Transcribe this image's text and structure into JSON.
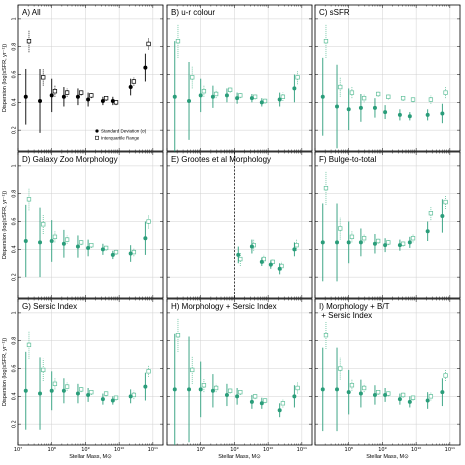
{
  "figure": {
    "xlabel": "Stellar Mass, M⊙",
    "ylabel": "Dispersion (log(sSFR, yr⁻¹))",
    "x_tick_labels": [
      "10⁷",
      "10⁸",
      "10⁹",
      "10¹⁰",
      "10¹¹"
    ],
    "y_tick_labels": [
      "0.2",
      "0.4",
      "0.6",
      "0.8",
      "1"
    ],
    "legend": {
      "filled": "Standard Deviation (σ)",
      "open": "Interquartile Range"
    },
    "colors": {
      "all": "#000000",
      "teal": "#2a9d7a",
      "open_teal": "#5fbf9a",
      "grid": "#d0d0d0"
    }
  },
  "chart_data": [
    {
      "type": "scatter",
      "title": "A) All",
      "color": "#000000",
      "xscale": "log",
      "xlim": [
        10000000,
        200000000000
      ],
      "ylim": [
        0.05,
        1.1
      ],
      "std": {
        "x": [
          17000000,
          45000000,
          100000000,
          230000000,
          600000000,
          1200000000,
          3300000000,
          6500000000,
          22000000000,
          60000000000
        ],
        "y": [
          0.44,
          0.41,
          0.45,
          0.44,
          0.44,
          0.42,
          0.41,
          0.41,
          0.51,
          0.65
        ],
        "err": [
          0.2,
          0.23,
          0.12,
          0.07,
          0.06,
          0.05,
          0.03,
          0.03,
          0.06,
          0.1
        ]
      },
      "iqr": {
        "x": [
          17000000,
          45000000,
          100000000,
          230000000,
          600000000,
          1200000000,
          3300000000,
          6500000000,
          22000000000,
          60000000000
        ],
        "y": [
          0.84,
          0.58,
          0.48,
          0.47,
          0.47,
          0.45,
          0.43,
          0.4,
          0.55,
          0.82
        ],
        "err": [
          0.08,
          0.06,
          0.04,
          0.03,
          0.02,
          0.02,
          0.02,
          0.02,
          0.03,
          0.04
        ]
      },
      "show_legend": true
    },
    {
      "type": "scatter",
      "title": "B) u-r colour",
      "color": "#2a9d7a",
      "xscale": "log",
      "xlim": [
        10000000,
        200000000000
      ],
      "ylim": [
        0.05,
        1.1
      ],
      "std": {
        "x": [
          17000000,
          45000000,
          100000000,
          230000000,
          600000000,
          1200000000,
          3300000000,
          6500000000,
          22000000000,
          60000000000
        ],
        "y": [
          0.44,
          0.41,
          0.45,
          0.44,
          0.45,
          0.43,
          0.43,
          0.4,
          0.42,
          0.5
        ],
        "err": [
          0.4,
          0.28,
          0.12,
          0.08,
          0.05,
          0.04,
          0.03,
          0.03,
          0.05,
          0.1
        ]
      },
      "iqr": {
        "x": [
          17000000,
          45000000,
          100000000,
          230000000,
          600000000,
          1200000000,
          3300000000,
          6500000000,
          22000000000,
          60000000000
        ],
        "y": [
          0.84,
          0.58,
          0.48,
          0.46,
          0.49,
          0.45,
          0.44,
          0.41,
          0.44,
          0.58
        ],
        "err": [
          0.12,
          0.08,
          0.04,
          0.03,
          0.02,
          0.02,
          0.02,
          0.02,
          0.03,
          0.05
        ]
      }
    },
    {
      "type": "scatter",
      "title": "C) sSFR",
      "color": "#2a9d7a",
      "xscale": "log",
      "xlim": [
        10000000,
        200000000000
      ],
      "ylim": [
        0.05,
        1.1
      ],
      "std": {
        "x": [
          17000000,
          45000000,
          100000000,
          230000000,
          600000000,
          1200000000,
          3300000000,
          6500000000,
          22000000000,
          60000000000
        ],
        "y": [
          0.44,
          0.37,
          0.35,
          0.36,
          0.36,
          0.33,
          0.31,
          0.3,
          0.31,
          0.32
        ],
        "err": [
          0.28,
          0.3,
          0.15,
          0.1,
          0.07,
          0.05,
          0.04,
          0.03,
          0.04,
          0.07
        ]
      },
      "iqr": {
        "x": [
          17000000,
          45000000,
          100000000,
          230000000,
          600000000,
          1200000000,
          3300000000,
          6500000000,
          22000000000,
          60000000000
        ],
        "y": [
          0.84,
          0.51,
          0.47,
          0.43,
          0.46,
          0.44,
          0.43,
          0.42,
          0.42,
          0.47
        ],
        "err": [
          0.12,
          0.07,
          0.04,
          0.03,
          0.02,
          0.02,
          0.02,
          0.02,
          0.03,
          0.04
        ]
      }
    },
    {
      "type": "scatter",
      "title": "D) Galaxy Zoo Morphology",
      "color": "#2a9d7a",
      "xscale": "log",
      "xlim": [
        10000000,
        200000000000
      ],
      "ylim": [
        0.05,
        1.1
      ],
      "std": {
        "x": [
          17000000,
          45000000,
          100000000,
          230000000,
          600000000,
          1200000000,
          3300000000,
          6500000000,
          22000000000,
          60000000000
        ],
        "y": [
          0.46,
          0.45,
          0.46,
          0.44,
          0.42,
          0.41,
          0.4,
          0.36,
          0.37,
          0.48
        ],
        "err": [
          0.26,
          0.25,
          0.15,
          0.1,
          0.08,
          0.06,
          0.04,
          0.03,
          0.06,
          0.12
        ]
      },
      "iqr": {
        "x": [
          17000000,
          45000000,
          100000000,
          230000000,
          600000000,
          1200000000,
          3300000000,
          6500000000,
          22000000000,
          60000000000
        ],
        "y": [
          0.76,
          0.58,
          0.49,
          0.47,
          0.45,
          0.43,
          0.41,
          0.38,
          0.38,
          0.6
        ],
        "err": [
          0.08,
          0.07,
          0.04,
          0.03,
          0.02,
          0.02,
          0.02,
          0.02,
          0.03,
          0.05
        ]
      }
    },
    {
      "type": "scatter",
      "title": "E) Grootes et al Morphology",
      "color": "#2a9d7a",
      "xscale": "log",
      "xlim": [
        10000000,
        200000000000
      ],
      "ylim": [
        0.05,
        1.1
      ],
      "vline_x": 1000000000,
      "std": {
        "x": [
          1300000000,
          3300000000,
          6500000000,
          12000000000,
          22000000000,
          60000000000
        ],
        "y": [
          0.36,
          0.42,
          0.31,
          0.29,
          0.26,
          0.4
        ],
        "err": [
          0.06,
          0.05,
          0.03,
          0.03,
          0.04,
          0.05
        ]
      },
      "iqr": {
        "x": [
          1200000000,
          3000000000,
          6000000000,
          11000000000,
          20000000000,
          56000000000
        ],
        "y": [
          0.33,
          0.43,
          0.33,
          0.31,
          0.28,
          0.43
        ],
        "err": [
          0.05,
          0.04,
          0.03,
          0.02,
          0.03,
          0.04
        ]
      }
    },
    {
      "type": "scatter",
      "title": "F) Bulge-to-total",
      "color": "#2a9d7a",
      "xscale": "log",
      "xlim": [
        10000000,
        200000000000
      ],
      "ylim": [
        0.05,
        1.1
      ],
      "std": {
        "x": [
          17000000,
          45000000,
          100000000,
          230000000,
          600000000,
          1200000000,
          3300000000,
          6500000000,
          22000000000,
          60000000000
        ],
        "y": [
          0.45,
          0.45,
          0.45,
          0.45,
          0.44,
          0.43,
          0.43,
          0.45,
          0.53,
          0.64
        ],
        "err": [
          0.28,
          0.28,
          0.15,
          0.1,
          0.07,
          0.05,
          0.04,
          0.04,
          0.07,
          0.12
        ]
      },
      "iqr": {
        "x": [
          17000000,
          45000000,
          100000000,
          230000000,
          600000000,
          1200000000,
          3300000000,
          6500000000,
          22000000000,
          60000000000
        ],
        "y": [
          0.84,
          0.55,
          0.49,
          0.48,
          0.46,
          0.45,
          0.44,
          0.48,
          0.66,
          0.74
        ],
        "err": [
          0.12,
          0.08,
          0.04,
          0.03,
          0.02,
          0.02,
          0.02,
          0.03,
          0.05,
          0.05
        ]
      }
    },
    {
      "type": "scatter",
      "title": "G) Sersic Index",
      "color": "#2a9d7a",
      "xscale": "log",
      "xlim": [
        10000000,
        200000000000
      ],
      "ylim": [
        0.05,
        1.1
      ],
      "std": {
        "x": [
          17000000,
          45000000,
          100000000,
          230000000,
          600000000,
          1200000000,
          3300000000,
          6500000000,
          22000000000,
          60000000000
        ],
        "y": [
          0.44,
          0.42,
          0.44,
          0.44,
          0.42,
          0.41,
          0.38,
          0.37,
          0.4,
          0.47
        ],
        "err": [
          0.28,
          0.26,
          0.14,
          0.09,
          0.07,
          0.05,
          0.04,
          0.03,
          0.05,
          0.1
        ]
      },
      "iqr": {
        "x": [
          17000000,
          45000000,
          100000000,
          230000000,
          600000000,
          1200000000,
          3300000000,
          6500000000,
          22000000000,
          60000000000
        ],
        "y": [
          0.77,
          0.59,
          0.49,
          0.47,
          0.45,
          0.43,
          0.42,
          0.39,
          0.41,
          0.58
        ],
        "err": [
          0.1,
          0.08,
          0.04,
          0.03,
          0.02,
          0.02,
          0.02,
          0.02,
          0.03,
          0.04
        ]
      }
    },
    {
      "type": "scatter",
      "title": "H) Morphology + Sersic Index",
      "color": "#2a9d7a",
      "xscale": "log",
      "xlim": [
        10000000,
        200000000000
      ],
      "ylim": [
        0.05,
        1.1
      ],
      "std": {
        "x": [
          17000000,
          45000000,
          100000000,
          230000000,
          600000000,
          1200000000,
          3300000000,
          6500000000,
          22000000000,
          60000000000
        ],
        "y": [
          0.45,
          0.45,
          0.45,
          0.44,
          0.41,
          0.4,
          0.36,
          0.35,
          0.3,
          0.4
        ],
        "err": [
          0.4,
          0.38,
          0.2,
          0.12,
          0.08,
          0.06,
          0.05,
          0.04,
          0.05,
          0.08
        ]
      },
      "iqr": {
        "x": [
          17000000,
          45000000,
          100000000,
          230000000,
          600000000,
          1200000000,
          3300000000,
          6500000000,
          22000000000,
          60000000000
        ],
        "y": [
          0.84,
          0.59,
          0.48,
          0.46,
          0.44,
          0.43,
          0.4,
          0.37,
          0.35,
          0.46
        ],
        "err": [
          0.12,
          0.1,
          0.05,
          0.03,
          0.02,
          0.02,
          0.02,
          0.02,
          0.03,
          0.04
        ]
      }
    },
    {
      "type": "scatter",
      "title": "I) Morphology + B/T\n   + Sersic Index",
      "color": "#2a9d7a",
      "xscale": "log",
      "xlim": [
        10000000,
        200000000000
      ],
      "ylim": [
        0.05,
        1.1
      ],
      "std": {
        "x": [
          17000000,
          45000000,
          100000000,
          230000000,
          600000000,
          1200000000,
          3300000000,
          6500000000,
          22000000000,
          60000000000
        ],
        "y": [
          0.45,
          0.45,
          0.43,
          0.42,
          0.41,
          0.41,
          0.38,
          0.36,
          0.37,
          0.43
        ],
        "err": [
          0.3,
          0.3,
          0.16,
          0.1,
          0.07,
          0.05,
          0.04,
          0.04,
          0.06,
          0.1
        ]
      },
      "iqr": {
        "x": [
          17000000,
          45000000,
          100000000,
          230000000,
          600000000,
          1200000000,
          3300000000,
          6500000000,
          22000000000,
          60000000000
        ],
        "y": [
          0.84,
          0.6,
          0.48,
          0.46,
          0.43,
          0.42,
          0.41,
          0.39,
          0.4,
          0.55
        ],
        "err": [
          0.1,
          0.08,
          0.04,
          0.03,
          0.02,
          0.02,
          0.02,
          0.02,
          0.03,
          0.04
        ]
      }
    }
  ]
}
